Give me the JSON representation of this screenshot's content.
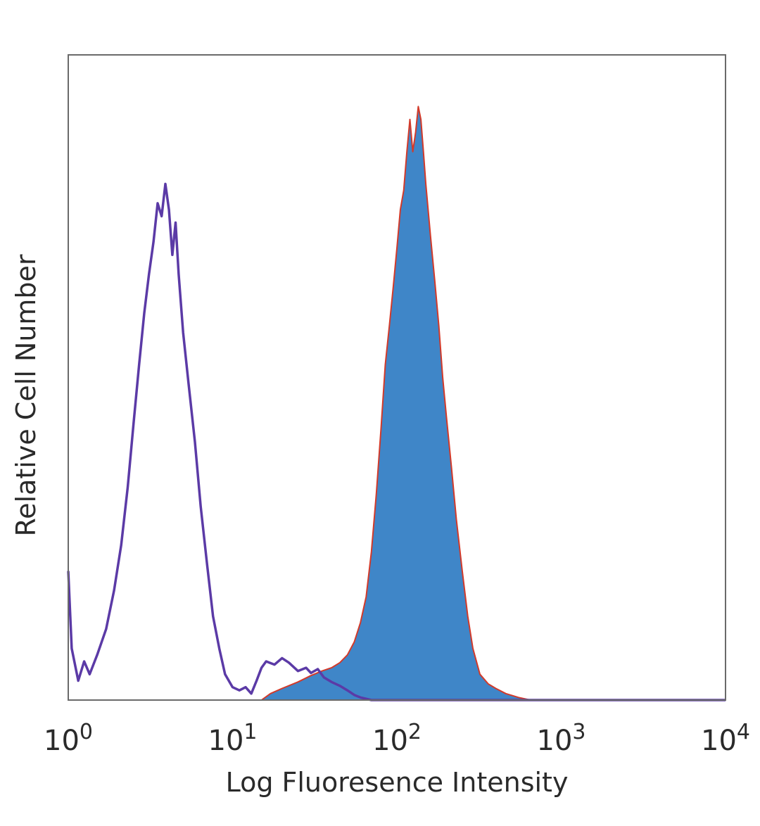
{
  "chart_data": {
    "type": "area",
    "title": "",
    "xlabel": "Log Fluoresence Intensity",
    "ylabel": "Relative Cell Number",
    "xscale": "log",
    "xlim": [
      1,
      10000
    ],
    "ylim": [
      0,
      1
    ],
    "grid": false,
    "legend": "none",
    "x_ticks": [
      {
        "value": 1,
        "base": "10",
        "exp": "0"
      },
      {
        "value": 10,
        "base": "10",
        "exp": "1"
      },
      {
        "value": 100,
        "base": "10",
        "exp": "2"
      },
      {
        "value": 1000,
        "base": "10",
        "exp": "3"
      },
      {
        "value": 10000,
        "base": "10",
        "exp": "4"
      }
    ],
    "series": [
      {
        "style": "filled",
        "color": "#3f86c8",
        "edge_color": "#d23a2a",
        "points": [
          [
            1,
            0
          ],
          [
            15,
            0
          ],
          [
            17,
            0.01
          ],
          [
            20,
            0.018
          ],
          [
            25,
            0.028
          ],
          [
            30,
            0.038
          ],
          [
            35,
            0.045
          ],
          [
            40,
            0.05
          ],
          [
            45,
            0.058
          ],
          [
            50,
            0.07
          ],
          [
            55,
            0.09
          ],
          [
            60,
            0.12
          ],
          [
            65,
            0.16
          ],
          [
            70,
            0.23
          ],
          [
            75,
            0.32
          ],
          [
            80,
            0.42
          ],
          [
            85,
            0.52
          ],
          [
            90,
            0.58
          ],
          [
            95,
            0.64
          ],
          [
            100,
            0.7
          ],
          [
            105,
            0.76
          ],
          [
            110,
            0.79
          ],
          [
            115,
            0.85
          ],
          [
            120,
            0.9
          ],
          [
            125,
            0.85
          ],
          [
            130,
            0.88
          ],
          [
            135,
            0.92
          ],
          [
            140,
            0.9
          ],
          [
            145,
            0.85
          ],
          [
            150,
            0.8
          ],
          [
            160,
            0.72
          ],
          [
            170,
            0.65
          ],
          [
            180,
            0.58
          ],
          [
            190,
            0.5
          ],
          [
            200,
            0.44
          ],
          [
            215,
            0.36
          ],
          [
            230,
            0.28
          ],
          [
            250,
            0.2
          ],
          [
            270,
            0.13
          ],
          [
            290,
            0.08
          ],
          [
            320,
            0.04
          ],
          [
            360,
            0.025
          ],
          [
            400,
            0.018
          ],
          [
            460,
            0.01
          ],
          [
            550,
            0.004
          ],
          [
            650,
            0
          ],
          [
            10000,
            0
          ]
        ]
      },
      {
        "style": "line",
        "color": "#5b3aa6",
        "points": [
          [
            1,
            0.2
          ],
          [
            1.05,
            0.08
          ],
          [
            1.15,
            0.03
          ],
          [
            1.25,
            0.06
          ],
          [
            1.35,
            0.04
          ],
          [
            1.5,
            0.07
          ],
          [
            1.7,
            0.11
          ],
          [
            1.9,
            0.17
          ],
          [
            2.1,
            0.24
          ],
          [
            2.3,
            0.33
          ],
          [
            2.5,
            0.43
          ],
          [
            2.7,
            0.52
          ],
          [
            2.9,
            0.6
          ],
          [
            3.1,
            0.66
          ],
          [
            3.3,
            0.71
          ],
          [
            3.5,
            0.77
          ],
          [
            3.7,
            0.75
          ],
          [
            3.9,
            0.8
          ],
          [
            4.1,
            0.76
          ],
          [
            4.3,
            0.69
          ],
          [
            4.5,
            0.74
          ],
          [
            4.7,
            0.66
          ],
          [
            5.0,
            0.57
          ],
          [
            5.4,
            0.49
          ],
          [
            5.9,
            0.4
          ],
          [
            6.4,
            0.3
          ],
          [
            7.0,
            0.21
          ],
          [
            7.6,
            0.13
          ],
          [
            8.3,
            0.08
          ],
          [
            9.0,
            0.04
          ],
          [
            10,
            0.02
          ],
          [
            11,
            0.015
          ],
          [
            12,
            0.02
          ],
          [
            13,
            0.01
          ],
          [
            14,
            0.03
          ],
          [
            15,
            0.05
          ],
          [
            16,
            0.06
          ],
          [
            18,
            0.055
          ],
          [
            20,
            0.065
          ],
          [
            22,
            0.058
          ],
          [
            25,
            0.045
          ],
          [
            28,
            0.05
          ],
          [
            30,
            0.042
          ],
          [
            33,
            0.048
          ],
          [
            36,
            0.035
          ],
          [
            40,
            0.028
          ],
          [
            45,
            0.022
          ],
          [
            50,
            0.015
          ],
          [
            55,
            0.008
          ],
          [
            60,
            0.004
          ],
          [
            70,
            0
          ],
          [
            10000,
            0
          ]
        ]
      }
    ]
  }
}
